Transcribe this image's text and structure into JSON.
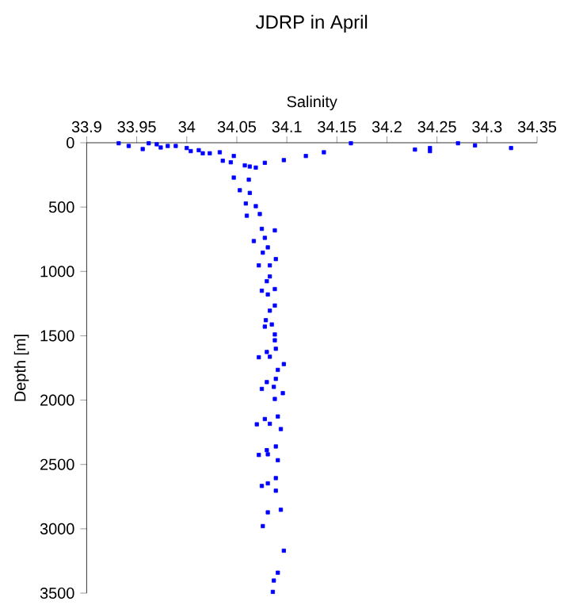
{
  "chart_data": {
    "type": "scatter",
    "title": "JDRP in April",
    "xlabel": "Salinity",
    "ylabel": "Depth [m]",
    "color": "#0000ff",
    "marker": "square",
    "xlim": [
      33.9,
      34.35
    ],
    "xticks": [
      33.9,
      33.95,
      34,
      34.05,
      34.1,
      34.15,
      34.2,
      34.25,
      34.3,
      34.35
    ],
    "ylim": [
      3500,
      0
    ],
    "yticks": [
      0,
      500,
      1000,
      1500,
      2000,
      2500,
      3000,
      3500
    ],
    "x": [
      33.932,
      33.942,
      33.956,
      33.962,
      33.97,
      33.974,
      33.981,
      33.989,
      34.0,
      34.004,
      34.012,
      34.016,
      34.023,
      34.033,
      34.036,
      34.047,
      34.044,
      34.058,
      34.063,
      34.069,
      34.078,
      34.097,
      34.119,
      34.137,
      34.164,
      34.228,
      34.243,
      34.243,
      34.271,
      34.288,
      34.324,
      34.047,
      34.062,
      34.053,
      34.063,
      34.059,
      34.069,
      34.06,
      34.073,
      34.075,
      34.088,
      34.067,
      34.078,
      34.081,
      34.076,
      34.089,
      34.072,
      34.083,
      34.08,
      34.083,
      34.075,
      34.088,
      34.081,
      34.083,
      34.088,
      34.079,
      34.078,
      34.085,
      34.088,
      34.088,
      34.08,
      34.089,
      34.072,
      34.083,
      34.097,
      34.091,
      34.089,
      34.08,
      34.087,
      34.075,
      34.096,
      34.088,
      34.078,
      34.07,
      34.083,
      34.091,
      34.094,
      34.08,
      34.089,
      34.072,
      34.081,
      34.091,
      34.089,
      34.081,
      34.075,
      34.089,
      34.094,
      34.081,
      34.076,
      34.097,
      34.091,
      34.087,
      34.086
    ],
    "values": [
      4,
      25,
      49,
      4,
      12,
      37,
      25,
      25,
      41,
      65,
      58,
      82,
      82,
      74,
      140,
      103,
      152,
      176,
      185,
      193,
      156,
      135,
      103,
      74,
      4,
      53,
      41,
      65,
      4,
      21,
      41,
      271,
      287,
      369,
      390,
      472,
      493,
      567,
      554,
      669,
      681,
      764,
      739,
      813,
      854,
      904,
      953,
      953,
      1076,
      1039,
      1150,
      1137,
      1179,
      1305,
      1265,
      1379,
      1429,
      1412,
      1490,
      1535,
      1626,
      1601,
      1667,
      1663,
      1720,
      1765,
      1835,
      1860,
      1897,
      1913,
      1946,
      1991,
      2147,
      2188,
      2184,
      2127,
      2225,
      2389,
      2360,
      2426,
      2421,
      2467,
      2606,
      2647,
      2667,
      2704,
      2852,
      2872,
      2979,
      3170,
      3341,
      3402,
      3490
    ]
  }
}
